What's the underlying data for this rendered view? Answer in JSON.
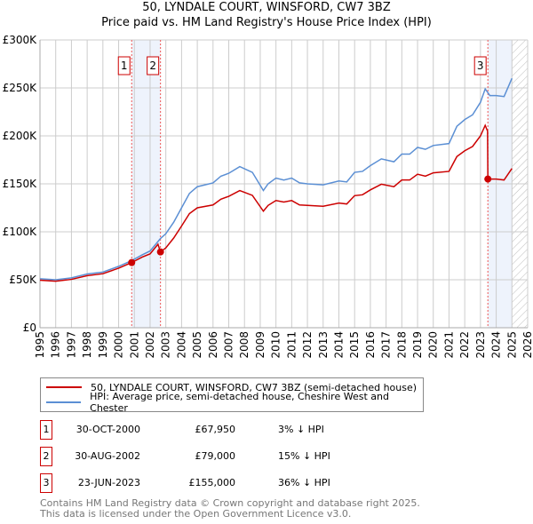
{
  "title_line1": "50, LYNDALE COURT, WINSFORD, CW7 3BZ",
  "title_line2": "Price paid vs. HM Land Registry's House Price Index (HPI)",
  "chart_data": {
    "type": "line",
    "title": "50, LYNDALE COURT, WINSFORD, CW7 3BZ — Price paid vs. HM Land Registry's House Price Index (HPI)",
    "xlim": [
      1995,
      2026
    ],
    "ylim": [
      0,
      300000
    ],
    "x_ticks": [
      "1995",
      "1996",
      "1997",
      "1998",
      "1999",
      "2000",
      "2001",
      "2002",
      "2003",
      "2004",
      "2005",
      "2006",
      "2007",
      "2008",
      "2009",
      "2010",
      "2011",
      "2012",
      "2013",
      "2014",
      "2015",
      "2016",
      "2017",
      "2018",
      "2019",
      "2020",
      "2021",
      "2022",
      "2023",
      "2024",
      "2025",
      "2026"
    ],
    "y_ticks": [
      {
        "v": 0,
        "label": "£0"
      },
      {
        "v": 50000,
        "label": "£50K"
      },
      {
        "v": 100000,
        "label": "£100K"
      },
      {
        "v": 150000,
        "label": "£150K"
      },
      {
        "v": 200000,
        "label": "£200K"
      },
      {
        "v": 250000,
        "label": "£250K"
      },
      {
        "v": 300000,
        "label": "£300K"
      }
    ],
    "grid": true,
    "forecast_from": 2025,
    "shaded_ranges": [
      [
        2000.83,
        2002.66
      ],
      [
        2023.47,
        2025
      ]
    ],
    "series": [
      {
        "name": "50, LYNDALE COURT, WINSFORD, CW7 3BZ (semi-detached house)",
        "color": "#cc0000",
        "x": [
          1995,
          1996,
          1997,
          1998,
          1999,
          2000,
          2000.83,
          2001.5,
          2002,
          2002.5,
          2002.66,
          2003,
          2003.5,
          2004,
          2004.5,
          2005,
          2006,
          2006.5,
          2007,
          2007.7,
          2008.5,
          2009.2,
          2009.5,
          2010,
          2010.5,
          2011,
          2011.5,
          2012,
          2013,
          2014,
          2014.5,
          2015,
          2015.5,
          2016,
          2016.7,
          2017.5,
          2018,
          2018.5,
          2019,
          2019.5,
          2020,
          2021,
          2021.5,
          2022,
          2022.5,
          2023,
          2023.3,
          2023.45,
          2023.47,
          2023.6,
          2024,
          2024.5,
          2025
        ],
        "y": [
          49500,
          48500,
          50400,
          54300,
          56300,
          62100,
          67950,
          73700,
          77000,
          87000,
          79000,
          83300,
          93500,
          106000,
          119000,
          125000,
          128000,
          134000,
          137000,
          143000,
          138000,
          121500,
          127500,
          132600,
          131000,
          132600,
          128000,
          127500,
          126600,
          130000,
          129000,
          137700,
          138600,
          143700,
          149600,
          147000,
          154000,
          154000,
          160000,
          158000,
          161500,
          163000,
          178500,
          184500,
          189000,
          200000,
          211000,
          205000,
          155000,
          155000,
          155000,
          154000,
          166000
        ]
      },
      {
        "name": "HPI: Average price, semi-detached house, Cheshire West and Chester",
        "color": "#5b8fd4",
        "x": [
          1995,
          1996,
          1997,
          1998,
          1999,
          2000,
          2000.83,
          2001.5,
          2002,
          2002.66,
          2003,
          2003.5,
          2004,
          2004.5,
          2005,
          2006,
          2006.5,
          2007,
          2007.7,
          2008.5,
          2009.2,
          2009.5,
          2010,
          2010.5,
          2011,
          2011.5,
          2012,
          2013,
          2014,
          2014.5,
          2015,
          2015.5,
          2016,
          2016.7,
          2017.5,
          2018,
          2018.5,
          2019,
          2019.5,
          2020,
          2021,
          2021.5,
          2022,
          2022.5,
          2023,
          2023.3,
          2023.6,
          2024,
          2024.5,
          2025
        ],
        "y": [
          51000,
          50000,
          52000,
          56000,
          58000,
          64000,
          70000,
          76000,
          80000,
          93000,
          98000,
          110000,
          125000,
          140000,
          147000,
          151000,
          158000,
          161000,
          168000,
          162000,
          143000,
          150000,
          156000,
          154000,
          156000,
          151000,
          150000,
          149000,
          153000,
          152000,
          162000,
          163000,
          169000,
          176000,
          173000,
          181000,
          181000,
          188000,
          186000,
          190000,
          192000,
          210000,
          217000,
          222000,
          235000,
          249000,
          242000,
          242000,
          241000,
          260000
        ]
      }
    ],
    "sales": [
      {
        "n": "1",
        "x": 2000.83,
        "y": 67950
      },
      {
        "n": "2",
        "x": 2002.66,
        "y": 79000
      },
      {
        "n": "3",
        "x": 2023.47,
        "y": 155000
      }
    ]
  },
  "legend": {
    "property": "50, LYNDALE COURT, WINSFORD, CW7 3BZ (semi-detached house)",
    "hpi": "HPI: Average price, semi-detached house, Cheshire West and Chester"
  },
  "transactions": [
    {
      "n": "1",
      "date": "30-OCT-2000",
      "price": "£67,950",
      "hpi": "3% ↓ HPI"
    },
    {
      "n": "2",
      "date": "30-AUG-2002",
      "price": "£79,000",
      "hpi": "15% ↓ HPI"
    },
    {
      "n": "3",
      "date": "23-JUN-2023",
      "price": "£155,000",
      "hpi": "36% ↓ HPI"
    }
  ],
  "footer": {
    "line1": "Contains HM Land Registry data © Crown copyright and database right 2025.",
    "line2": "This data is licensed under the Open Government Licence v3.0."
  }
}
